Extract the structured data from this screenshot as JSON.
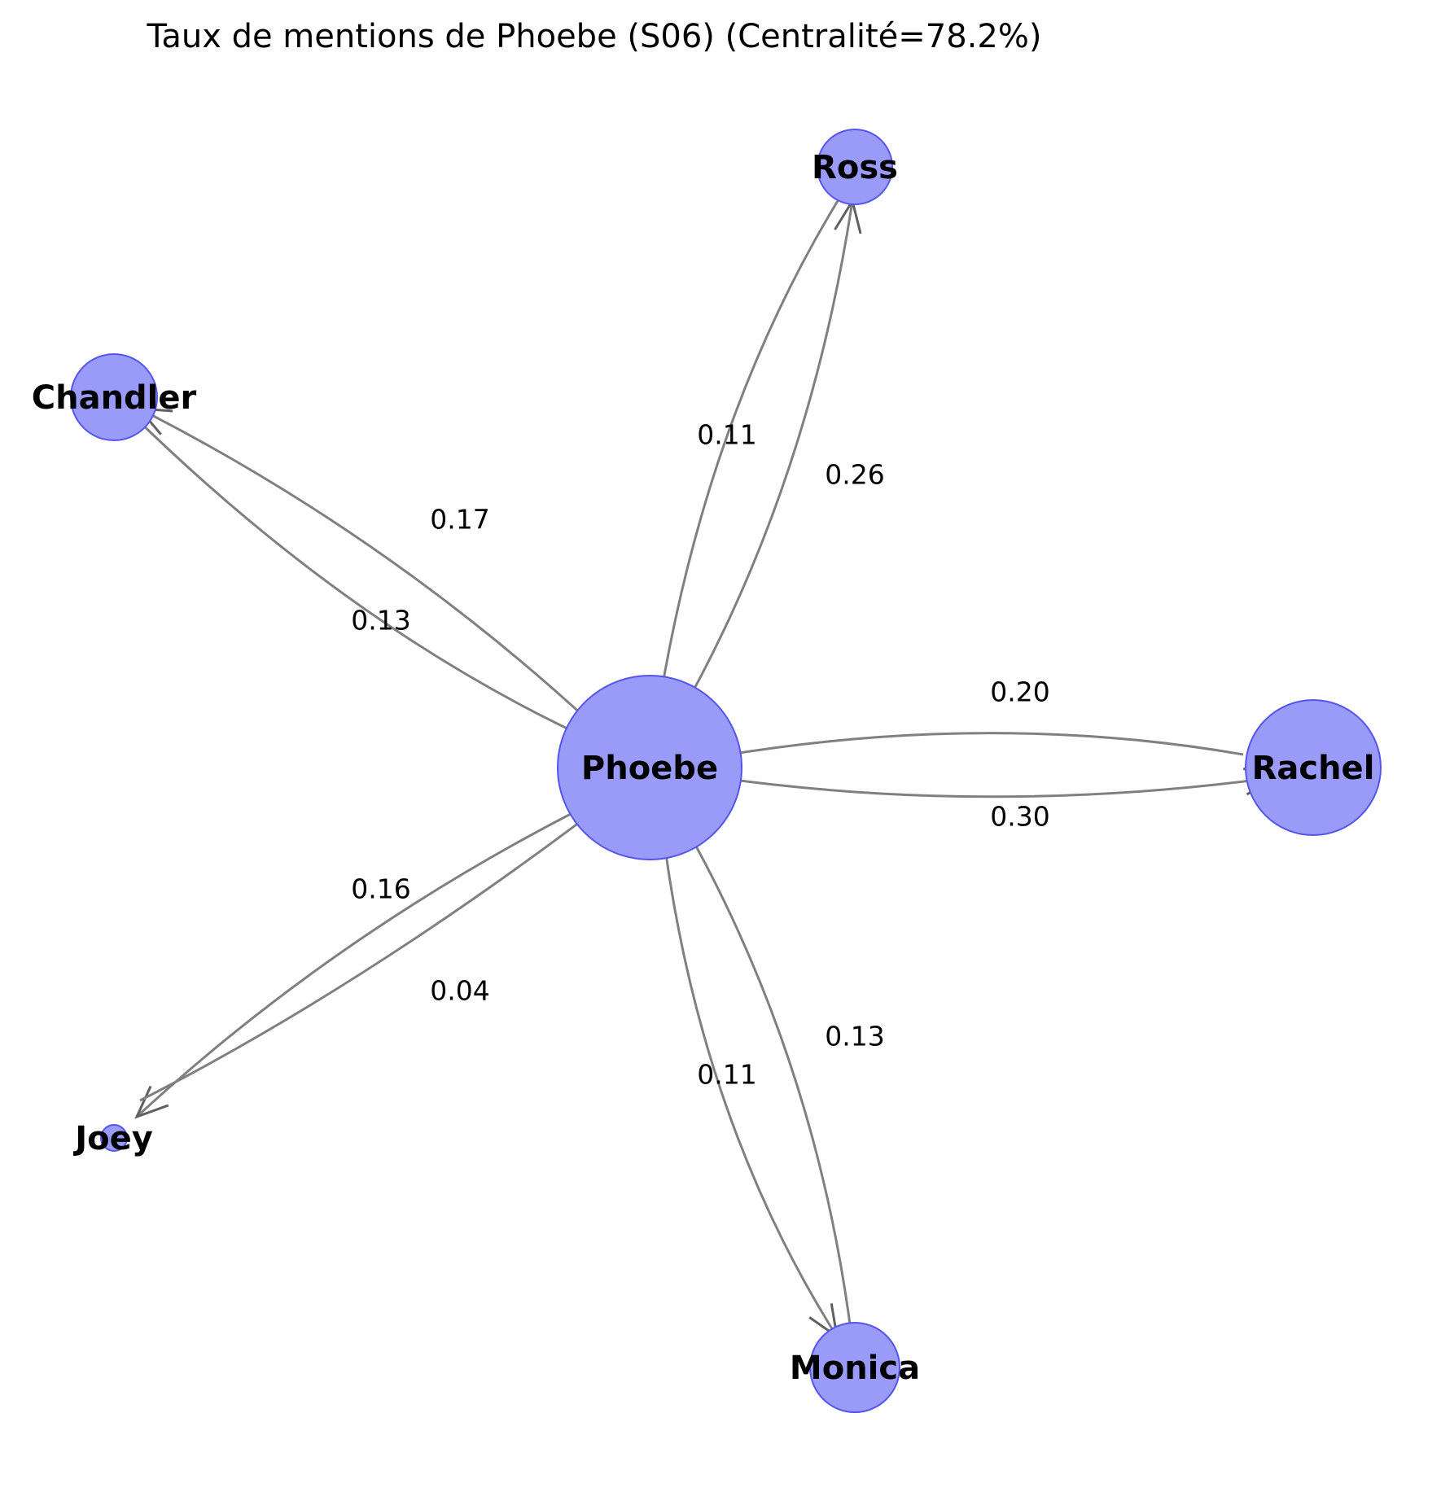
{
  "title": "Taux de mentions de Phoebe (S06) (Centralité=78.2%)",
  "colors": {
    "node_fill": "#9a9af8",
    "node_stroke": "#5555ee",
    "edge": "#808080",
    "text": "#000000"
  },
  "nodes": [
    {
      "id": "Phoebe",
      "label": "Phoebe"
    },
    {
      "id": "Ross",
      "label": "Ross"
    },
    {
      "id": "Chandler",
      "label": "Chandler"
    },
    {
      "id": "Rachel",
      "label": "Rachel"
    },
    {
      "id": "Joey",
      "label": "Joey"
    },
    {
      "id": "Monica",
      "label": "Monica"
    }
  ],
  "edges": [
    {
      "from": "Phoebe",
      "to": "Ross",
      "weight": "0.26"
    },
    {
      "from": "Ross",
      "to": "Phoebe",
      "weight": "0.11"
    },
    {
      "from": "Phoebe",
      "to": "Chandler",
      "weight": "0.17"
    },
    {
      "from": "Chandler",
      "to": "Phoebe",
      "weight": "0.13"
    },
    {
      "from": "Phoebe",
      "to": "Rachel",
      "weight": "0.30"
    },
    {
      "from": "Rachel",
      "to": "Phoebe",
      "weight": "0.20"
    },
    {
      "from": "Phoebe",
      "to": "Joey",
      "weight": "0.16"
    },
    {
      "from": "Joey",
      "to": "Phoebe",
      "weight": "0.04"
    },
    {
      "from": "Phoebe",
      "to": "Monica",
      "weight": "0.11"
    },
    {
      "from": "Monica",
      "to": "Phoebe",
      "weight": "0.13"
    }
  ]
}
